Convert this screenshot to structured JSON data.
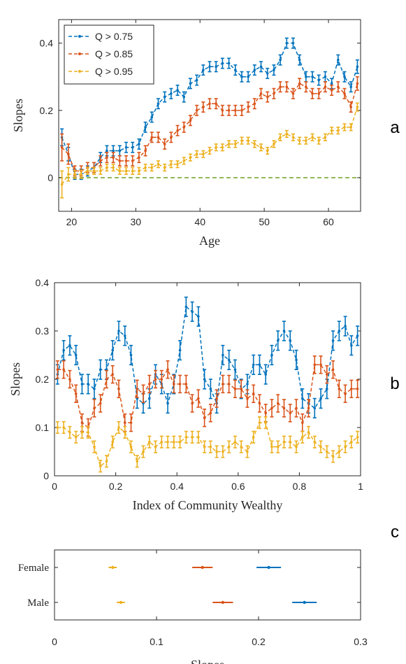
{
  "colors": {
    "q075": "#0072BD",
    "q085": "#D95319",
    "q095": "#EDB120",
    "zero_line": "#77AC30",
    "axis": "#262626"
  },
  "chart_data": [
    {
      "id": "a",
      "type": "line",
      "panel_label": "a",
      "xlabel": "Age",
      "ylabel": "Slopes",
      "xlim": [
        18,
        65
      ],
      "ylim": [
        -0.1,
        0.47
      ],
      "xticks": [
        20,
        30,
        40,
        50,
        60
      ],
      "yticks": [
        0,
        0.2,
        0.4
      ],
      "ytick_labels": [
        "0",
        "0.2",
        "0.4"
      ],
      "legend_position": "top-left",
      "reference_line": 0,
      "series": [
        {
          "name": "Q > 0.75",
          "color_key": "q075",
          "x": [
            18.5,
            19.5,
            20.5,
            21.5,
            22.5,
            23.5,
            24.5,
            25.5,
            26.5,
            27.5,
            28.5,
            29.5,
            30.5,
            31.5,
            32.5,
            33.5,
            34.5,
            35.5,
            36.5,
            37.5,
            38.5,
            39.5,
            40.5,
            41.5,
            42.5,
            43.5,
            44.5,
            45.5,
            46.5,
            47.5,
            48.5,
            49.5,
            50.5,
            51.5,
            52.5,
            53.5,
            54.5,
            55.5,
            56.5,
            57.5,
            58.5,
            59.5,
            60.5,
            61.5,
            62.5,
            63.5,
            64.5
          ],
          "y": [
            0.12,
            0.07,
            0.01,
            0.01,
            0.02,
            0.03,
            0.06,
            0.08,
            0.08,
            0.08,
            0.09,
            0.09,
            0.1,
            0.15,
            0.18,
            0.22,
            0.24,
            0.25,
            0.26,
            0.24,
            0.28,
            0.29,
            0.32,
            0.33,
            0.33,
            0.34,
            0.34,
            0.32,
            0.3,
            0.3,
            0.32,
            0.33,
            0.31,
            0.32,
            0.35,
            0.4,
            0.4,
            0.35,
            0.3,
            0.3,
            0.29,
            0.3,
            0.28,
            0.35,
            0.3,
            0.27,
            0.33
          ],
          "err": [
            0.025,
            0.02,
            0.015,
            0.015,
            0.015,
            0.015,
            0.015,
            0.015,
            0.015,
            0.015,
            0.015,
            0.015,
            0.015,
            0.015,
            0.015,
            0.015,
            0.015,
            0.015,
            0.015,
            0.015,
            0.015,
            0.015,
            0.015,
            0.015,
            0.015,
            0.015,
            0.015,
            0.015,
            0.015,
            0.015,
            0.015,
            0.015,
            0.015,
            0.015,
            0.015,
            0.015,
            0.015,
            0.015,
            0.015,
            0.015,
            0.015,
            0.015,
            0.015,
            0.015,
            0.015,
            0.015,
            0.02
          ]
        },
        {
          "name": "Q > 0.85",
          "color_key": "q085",
          "x": [
            18.5,
            19.5,
            20.5,
            21.5,
            22.5,
            23.5,
            24.5,
            25.5,
            26.5,
            27.5,
            28.5,
            29.5,
            30.5,
            31.5,
            32.5,
            33.5,
            34.5,
            35.5,
            36.5,
            37.5,
            38.5,
            39.5,
            40.5,
            41.5,
            42.5,
            43.5,
            44.5,
            45.5,
            46.5,
            47.5,
            48.5,
            49.5,
            50.5,
            51.5,
            52.5,
            53.5,
            54.5,
            55.5,
            56.5,
            57.5,
            58.5,
            59.5,
            60.5,
            61.5,
            62.5,
            63.5,
            64.5
          ],
          "y": [
            0.09,
            0.07,
            0.02,
            0.02,
            0.03,
            0.03,
            0.05,
            0.06,
            0.06,
            0.05,
            0.05,
            0.05,
            0.06,
            0.08,
            0.12,
            0.12,
            0.1,
            0.12,
            0.14,
            0.15,
            0.17,
            0.2,
            0.21,
            0.22,
            0.22,
            0.2,
            0.2,
            0.2,
            0.2,
            0.21,
            0.22,
            0.25,
            0.24,
            0.25,
            0.27,
            0.27,
            0.25,
            0.28,
            0.27,
            0.25,
            0.25,
            0.27,
            0.26,
            0.27,
            0.25,
            0.21,
            0.28
          ],
          "err": [
            0.04,
            0.03,
            0.015,
            0.015,
            0.015,
            0.015,
            0.015,
            0.015,
            0.015,
            0.015,
            0.015,
            0.015,
            0.015,
            0.015,
            0.015,
            0.015,
            0.015,
            0.015,
            0.015,
            0.015,
            0.015,
            0.015,
            0.015,
            0.015,
            0.015,
            0.015,
            0.015,
            0.015,
            0.015,
            0.015,
            0.015,
            0.015,
            0.015,
            0.015,
            0.015,
            0.015,
            0.015,
            0.015,
            0.015,
            0.015,
            0.015,
            0.015,
            0.015,
            0.015,
            0.015,
            0.015,
            0.02
          ]
        },
        {
          "name": "Q > 0.95",
          "color_key": "q095",
          "x": [
            18.5,
            19.5,
            20.5,
            21.5,
            22.5,
            23.5,
            24.5,
            25.5,
            26.5,
            27.5,
            28.5,
            29.5,
            30.5,
            31.5,
            32.5,
            33.5,
            34.5,
            35.5,
            36.5,
            37.5,
            38.5,
            39.5,
            40.5,
            41.5,
            42.5,
            43.5,
            44.5,
            45.5,
            46.5,
            47.5,
            48.5,
            49.5,
            50.5,
            51.5,
            52.5,
            53.5,
            54.5,
            55.5,
            56.5,
            57.5,
            58.5,
            59.5,
            60.5,
            61.5,
            62.5,
            63.5,
            64.5
          ],
          "y": [
            -0.02,
            0.01,
            0.01,
            0.01,
            0.02,
            0.02,
            0.02,
            0.03,
            0.03,
            0.02,
            0.02,
            0.02,
            0.02,
            0.03,
            0.03,
            0.04,
            0.03,
            0.04,
            0.04,
            0.05,
            0.06,
            0.07,
            0.07,
            0.08,
            0.09,
            0.09,
            0.1,
            0.1,
            0.11,
            0.11,
            0.1,
            0.09,
            0.08,
            0.1,
            0.12,
            0.13,
            0.12,
            0.11,
            0.11,
            0.12,
            0.11,
            0.12,
            0.14,
            0.14,
            0.15,
            0.15,
            0.21
          ],
          "err": [
            0.04,
            0.02,
            0.012,
            0.012,
            0.01,
            0.01,
            0.01,
            0.01,
            0.01,
            0.01,
            0.01,
            0.01,
            0.01,
            0.01,
            0.01,
            0.01,
            0.01,
            0.01,
            0.01,
            0.01,
            0.01,
            0.01,
            0.01,
            0.01,
            0.01,
            0.01,
            0.01,
            0.01,
            0.01,
            0.01,
            0.01,
            0.01,
            0.01,
            0.01,
            0.01,
            0.01,
            0.01,
            0.01,
            0.01,
            0.01,
            0.01,
            0.01,
            0.01,
            0.01,
            0.01,
            0.01,
            0.012
          ]
        }
      ]
    },
    {
      "id": "b",
      "type": "line",
      "panel_label": "b",
      "xlabel": "Index of Community Wealthy",
      "ylabel": "Slopes",
      "xlim": [
        0,
        1
      ],
      "ylim": [
        0,
        0.4
      ],
      "xticks": [
        0,
        0.2,
        0.4,
        0.6,
        0.8,
        1
      ],
      "xtick_labels": [
        "0",
        "0.2",
        "0.4",
        "0.6",
        "0.8",
        "1"
      ],
      "yticks": [
        0,
        0.1,
        0.2,
        0.3,
        0.4
      ],
      "ytick_labels": [
        "0",
        "0.1",
        "0.2",
        "0.3",
        "0.4"
      ],
      "series": [
        {
          "name": "Q > 0.75",
          "color_key": "q075",
          "x": [
            0.01,
            0.03,
            0.05,
            0.07,
            0.09,
            0.11,
            0.13,
            0.15,
            0.17,
            0.19,
            0.21,
            0.23,
            0.25,
            0.27,
            0.29,
            0.31,
            0.33,
            0.35,
            0.37,
            0.39,
            0.41,
            0.43,
            0.45,
            0.47,
            0.49,
            0.51,
            0.53,
            0.55,
            0.57,
            0.59,
            0.61,
            0.63,
            0.65,
            0.67,
            0.69,
            0.71,
            0.73,
            0.75,
            0.77,
            0.79,
            0.81,
            0.83,
            0.85,
            0.87,
            0.89,
            0.91,
            0.93,
            0.95,
            0.97,
            0.99
          ],
          "y": [
            0.21,
            0.26,
            0.27,
            0.25,
            0.19,
            0.19,
            0.18,
            0.22,
            0.22,
            0.26,
            0.3,
            0.29,
            0.25,
            0.16,
            0.15,
            0.16,
            0.21,
            0.19,
            0.15,
            0.19,
            0.26,
            0.35,
            0.34,
            0.33,
            0.2,
            0.18,
            0.15,
            0.25,
            0.24,
            0.22,
            0.18,
            0.19,
            0.23,
            0.23,
            0.21,
            0.25,
            0.28,
            0.3,
            0.28,
            0.24,
            0.16,
            0.15,
            0.14,
            0.16,
            0.18,
            0.28,
            0.3,
            0.31,
            0.27,
            0.29
          ],
          "err": [
            0.02,
            0.02,
            0.02,
            0.02,
            0.02,
            0.02,
            0.02,
            0.02,
            0.02,
            0.02,
            0.02,
            0.02,
            0.02,
            0.02,
            0.02,
            0.02,
            0.02,
            0.02,
            0.02,
            0.02,
            0.02,
            0.02,
            0.02,
            0.02,
            0.02,
            0.02,
            0.02,
            0.02,
            0.02,
            0.02,
            0.02,
            0.02,
            0.02,
            0.02,
            0.02,
            0.02,
            0.02,
            0.02,
            0.02,
            0.02,
            0.02,
            0.02,
            0.02,
            0.02,
            0.02,
            0.02,
            0.02,
            0.02,
            0.02,
            0.02
          ]
        },
        {
          "name": "Q > 0.85",
          "color_key": "q085",
          "x": [
            0.01,
            0.03,
            0.05,
            0.07,
            0.09,
            0.11,
            0.13,
            0.15,
            0.17,
            0.19,
            0.21,
            0.23,
            0.25,
            0.27,
            0.29,
            0.31,
            0.33,
            0.35,
            0.37,
            0.39,
            0.41,
            0.43,
            0.45,
            0.47,
            0.49,
            0.51,
            0.53,
            0.55,
            0.57,
            0.59,
            0.61,
            0.63,
            0.65,
            0.67,
            0.69,
            0.71,
            0.73,
            0.75,
            0.77,
            0.79,
            0.81,
            0.83,
            0.85,
            0.87,
            0.89,
            0.91,
            0.93,
            0.95,
            0.97,
            0.99
          ],
          "y": [
            0.22,
            0.22,
            0.2,
            0.17,
            0.11,
            0.1,
            0.14,
            0.15,
            0.2,
            0.21,
            0.18,
            0.11,
            0.11,
            0.18,
            0.17,
            0.19,
            0.2,
            0.2,
            0.22,
            0.19,
            0.19,
            0.19,
            0.15,
            0.16,
            0.12,
            0.13,
            0.16,
            0.19,
            0.19,
            0.18,
            0.18,
            0.16,
            0.17,
            0.15,
            0.13,
            0.14,
            0.15,
            0.14,
            0.13,
            0.14,
            0.11,
            0.14,
            0.23,
            0.23,
            0.21,
            0.22,
            0.18,
            0.17,
            0.18,
            0.18
          ],
          "err": [
            0.018,
            0.018,
            0.018,
            0.018,
            0.018,
            0.018,
            0.018,
            0.018,
            0.018,
            0.018,
            0.018,
            0.018,
            0.018,
            0.018,
            0.018,
            0.018,
            0.018,
            0.018,
            0.018,
            0.018,
            0.018,
            0.018,
            0.018,
            0.018,
            0.018,
            0.018,
            0.018,
            0.018,
            0.018,
            0.018,
            0.018,
            0.018,
            0.018,
            0.018,
            0.018,
            0.018,
            0.018,
            0.018,
            0.018,
            0.018,
            0.018,
            0.018,
            0.018,
            0.018,
            0.018,
            0.018,
            0.018,
            0.018,
            0.018,
            0.018
          ]
        },
        {
          "name": "Q > 0.95",
          "color_key": "q095",
          "x": [
            0.01,
            0.03,
            0.05,
            0.07,
            0.09,
            0.11,
            0.13,
            0.15,
            0.17,
            0.19,
            0.21,
            0.23,
            0.25,
            0.27,
            0.29,
            0.31,
            0.33,
            0.35,
            0.37,
            0.39,
            0.41,
            0.43,
            0.45,
            0.47,
            0.49,
            0.51,
            0.53,
            0.55,
            0.57,
            0.59,
            0.61,
            0.63,
            0.65,
            0.67,
            0.69,
            0.71,
            0.73,
            0.75,
            0.77,
            0.79,
            0.81,
            0.83,
            0.85,
            0.87,
            0.89,
            0.91,
            0.93,
            0.95,
            0.97,
            0.99
          ],
          "y": [
            0.1,
            0.1,
            0.09,
            0.08,
            0.09,
            0.09,
            0.06,
            0.02,
            0.03,
            0.07,
            0.1,
            0.09,
            0.06,
            0.03,
            0.05,
            0.07,
            0.06,
            0.07,
            0.07,
            0.07,
            0.07,
            0.08,
            0.08,
            0.08,
            0.06,
            0.06,
            0.05,
            0.05,
            0.06,
            0.07,
            0.06,
            0.05,
            0.08,
            0.11,
            0.11,
            0.06,
            0.06,
            0.07,
            0.07,
            0.06,
            0.08,
            0.09,
            0.07,
            0.06,
            0.05,
            0.04,
            0.05,
            0.06,
            0.07,
            0.08
          ],
          "err": [
            0.012,
            0.012,
            0.012,
            0.012,
            0.012,
            0.012,
            0.012,
            0.012,
            0.012,
            0.012,
            0.012,
            0.012,
            0.012,
            0.012,
            0.012,
            0.012,
            0.012,
            0.012,
            0.012,
            0.012,
            0.012,
            0.012,
            0.012,
            0.012,
            0.012,
            0.012,
            0.012,
            0.012,
            0.012,
            0.012,
            0.012,
            0.012,
            0.012,
            0.012,
            0.012,
            0.012,
            0.012,
            0.012,
            0.012,
            0.012,
            0.012,
            0.012,
            0.012,
            0.012,
            0.012,
            0.012,
            0.012,
            0.012,
            0.012,
            0.012
          ]
        }
      ]
    },
    {
      "id": "c",
      "type": "scatter",
      "panel_label": "c",
      "xlabel": "Slopes",
      "xlim": [
        0,
        0.3
      ],
      "xticks": [
        0,
        0.1,
        0.2,
        0.3
      ],
      "xtick_labels": [
        "0",
        "0.1",
        "0.2",
        "0.3"
      ],
      "categories": [
        "Female",
        "Male"
      ],
      "series": [
        {
          "name": "Q > 0.75",
          "color_key": "q075",
          "values": [
            0.21,
            0.245
          ],
          "err": [
            0.012,
            0.012
          ]
        },
        {
          "name": "Q > 0.85",
          "color_key": "q085",
          "values": [
            0.145,
            0.165
          ],
          "err": [
            0.01,
            0.01
          ]
        },
        {
          "name": "Q > 0.95",
          "color_key": "q095",
          "values": [
            0.057,
            0.065
          ],
          "err": [
            0.004,
            0.004
          ]
        }
      ]
    }
  ]
}
